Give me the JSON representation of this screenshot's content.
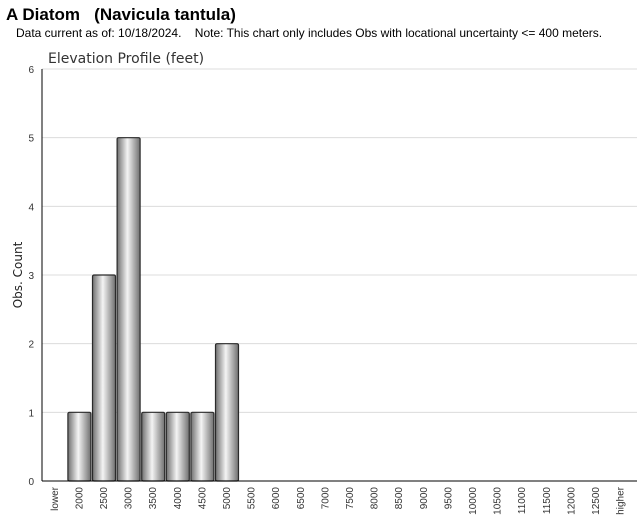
{
  "header": {
    "title": "A Diatom   (Navicula tantula)",
    "subtitle": "Data current as of: 10/18/2024.    Note: This chart only includes Obs with locational uncertainty <= 400 meters."
  },
  "chart_data": {
    "type": "bar",
    "title": "Elevation Profile (feet)",
    "xlabel": "",
    "ylabel": "Obs. Count",
    "ylim": [
      0,
      6
    ],
    "yticks": [
      0,
      1,
      2,
      3,
      4,
      5,
      6
    ],
    "grid": true,
    "categories": [
      "lower",
      "2000",
      "2500",
      "3000",
      "3500",
      "4000",
      "4500",
      "5000",
      "5500",
      "6000",
      "6500",
      "7000",
      "7500",
      "8000",
      "8500",
      "9000",
      "9500",
      "10000",
      "10500",
      "11000",
      "11500",
      "12000",
      "12500",
      "higher"
    ],
    "values": [
      0,
      1,
      3,
      5,
      1,
      1,
      1,
      2,
      0,
      0,
      0,
      0,
      0,
      0,
      0,
      0,
      0,
      0,
      0,
      0,
      0,
      0,
      0,
      0
    ],
    "colors": {
      "bar_dark": "#6f6f6f",
      "bar_light": "#f4f4f4",
      "bar_stroke": "#2a2a2a",
      "grid": "#dcdcdc",
      "axis": "#000000"
    }
  }
}
